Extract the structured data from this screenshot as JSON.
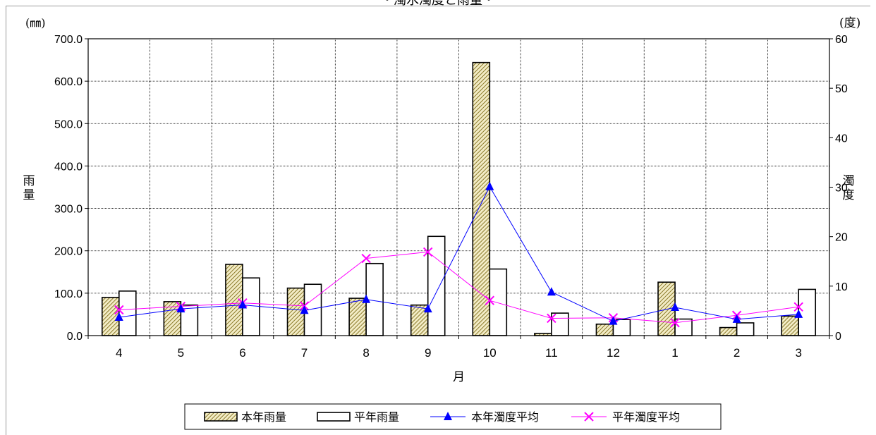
{
  "chart_data": {
    "type": "bar",
    "title": "・濁水濁度と雨量・",
    "xlabel": "月",
    "ylabel_left": "雨量",
    "ylabel_right": "濁度",
    "unit_left": "(㎜)",
    "unit_right": "(度)",
    "categories": [
      "4",
      "5",
      "6",
      "7",
      "8",
      "9",
      "10",
      "11",
      "12",
      "1",
      "2",
      "3"
    ],
    "ylim_left": [
      0,
      700
    ],
    "ylim_right": [
      0,
      60
    ],
    "yticks_left": [
      "0.0",
      "100.0",
      "200.0",
      "300.0",
      "400.0",
      "500.0",
      "600.0",
      "700.0"
    ],
    "yticks_right": [
      "0",
      "10",
      "20",
      "30",
      "40",
      "50",
      "60"
    ],
    "grid": true,
    "legend_position": "bottom",
    "series": [
      {
        "name": "本年雨量",
        "kind": "bar",
        "axis": "left",
        "color": "#c8b45a",
        "values": [
          90,
          80,
          168,
          112,
          88,
          72,
          644,
          5,
          27,
          126,
          19,
          46
        ]
      },
      {
        "name": "平年雨量",
        "kind": "bar",
        "axis": "left",
        "color": "#ffffff",
        "values": [
          105,
          72,
          136,
          121,
          170,
          234,
          157,
          53,
          38,
          39,
          30,
          109
        ]
      },
      {
        "name": "本年濁度平均",
        "kind": "line",
        "axis": "right",
        "color": "#0000ff",
        "values": [
          3.7,
          5.4,
          6.2,
          5.1,
          7.3,
          5.4,
          30.1,
          8.8,
          2.9,
          5.7,
          3.3,
          4.3
        ]
      },
      {
        "name": "平年濁度平均",
        "kind": "line",
        "axis": "right",
        "color": "#ff00ff",
        "values": [
          5.2,
          5.9,
          6.6,
          6.0,
          15.6,
          16.9,
          7.1,
          3.5,
          3.6,
          2.6,
          4.1,
          5.8
        ]
      }
    ]
  }
}
